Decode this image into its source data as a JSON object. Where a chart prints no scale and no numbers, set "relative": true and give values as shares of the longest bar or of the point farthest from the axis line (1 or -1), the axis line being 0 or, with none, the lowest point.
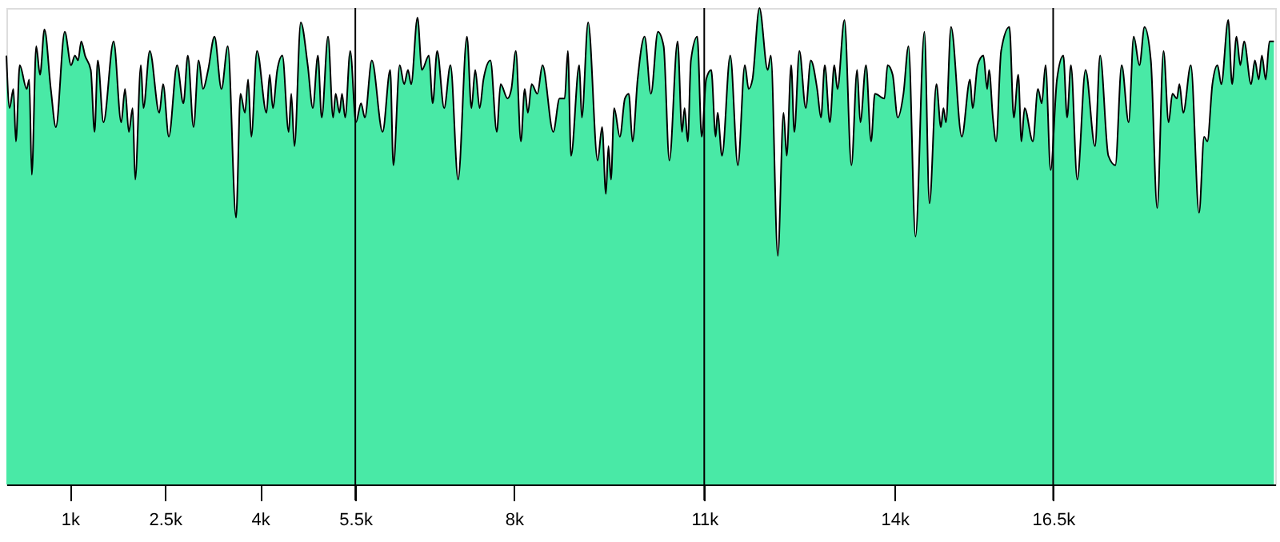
{
  "chart_data": {
    "type": "area",
    "relative": true,
    "grid": false,
    "xlim": [
      0,
      20000
    ],
    "xticks": [
      {
        "value": 1000,
        "label": "1k"
      },
      {
        "value": 2500,
        "label": "2.5k"
      },
      {
        "value": 4000,
        "label": "4k"
      },
      {
        "value": 5500,
        "label": "5.5k"
      },
      {
        "value": 8000,
        "label": "8k"
      },
      {
        "value": 11000,
        "label": "11k"
      },
      {
        "value": 14000,
        "label": "14k"
      },
      {
        "value": 16500,
        "label": "16.5k"
      }
    ],
    "ref_lines": [
      {
        "axis": "x",
        "value": 5500,
        "color": "#000000"
      },
      {
        "axis": "x",
        "value": 11000,
        "color": "#000000"
      },
      {
        "axis": "x",
        "value": 16500,
        "color": "#000000"
      }
    ],
    "x": [
      0,
      50,
      110,
      150,
      210,
      320,
      360,
      400,
      470,
      530,
      600,
      700,
      780,
      920,
      1020,
      1080,
      1130,
      1180,
      1240,
      1330,
      1390,
      1440,
      1530,
      1690,
      1810,
      1870,
      1930,
      1990,
      2030,
      2120,
      2160,
      2260,
      2410,
      2470,
      2560,
      2690,
      2790,
      2860,
      2950,
      3030,
      3100,
      3180,
      3280,
      3390,
      3490,
      3620,
      3690,
      3760,
      3810,
      3860,
      3950,
      4100,
      4150,
      4200,
      4270,
      4350,
      4450,
      4490,
      4540,
      4640,
      4750,
      4830,
      4910,
      4970,
      5070,
      5150,
      5190,
      5250,
      5290,
      5340,
      5420,
      5510,
      5590,
      5650,
      5760,
      5930,
      6050,
      6100,
      6200,
      6270,
      6330,
      6380,
      6480,
      6550,
      6660,
      6720,
      6790,
      6900,
      7000,
      7120,
      7260,
      7330,
      7390,
      7460,
      7520,
      7630,
      7730,
      7790,
      7900,
      7960,
      8030,
      8110,
      8170,
      8220,
      8280,
      8370,
      8450,
      8620,
      8720,
      8800,
      8850,
      8900,
      9030,
      9070,
      9170,
      9320,
      9390,
      9450,
      9490,
      9530,
      9580,
      9670,
      9750,
      9810,
      9870,
      9950,
      10060,
      10160,
      10270,
      10360,
      10450,
      10580,
      10650,
      10690,
      10740,
      10790,
      10890,
      10960,
      11030,
      11110,
      11180,
      11210,
      11280,
      11410,
      11530,
      11640,
      11700,
      11760,
      11870,
      12000,
      12050,
      12160,
      12250,
      12300,
      12370,
      12420,
      12500,
      12600,
      12680,
      12780,
      12840,
      12900,
      12980,
      13050,
      13100,
      13210,
      13320,
      13410,
      13460,
      13550,
      13630,
      13690,
      13840,
      13890,
      13970,
      14050,
      14140,
      14220,
      14330,
      14470,
      14550,
      14660,
      14730,
      14770,
      14810,
      14890,
      15060,
      15190,
      15230,
      15310,
      15400,
      15460,
      15490,
      15550,
      15600,
      15680,
      15810,
      15880,
      15950,
      16000,
      16050,
      16180,
      16260,
      16320,
      16380,
      16460,
      16560,
      16660,
      16720,
      16780,
      16880,
      17010,
      17160,
      17240,
      17370,
      17480,
      17580,
      17690,
      17770,
      17860,
      17940,
      18040,
      18140,
      18240,
      18320,
      18380,
      18450,
      18490,
      18550,
      18670,
      18800,
      18880,
      18930,
      19010,
      19090,
      19150,
      19260,
      19320,
      19390,
      19450,
      19510,
      19620,
      19680,
      19740,
      19790,
      19850,
      19910,
      19980
    ],
    "series": [
      {
        "color": "#49e9a6",
        "values": [
          0.9,
          0.79,
          0.83,
          0.72,
          0.88,
          0.83,
          0.85,
          0.65,
          0.92,
          0.86,
          0.955,
          0.83,
          0.75,
          0.95,
          0.88,
          0.9,
          0.89,
          0.93,
          0.9,
          0.87,
          0.74,
          0.89,
          0.76,
          0.93,
          0.76,
          0.83,
          0.74,
          0.79,
          0.64,
          0.88,
          0.79,
          0.91,
          0.78,
          0.84,
          0.73,
          0.88,
          0.8,
          0.9,
          0.75,
          0.89,
          0.83,
          0.87,
          0.94,
          0.83,
          0.92,
          0.56,
          0.82,
          0.78,
          0.85,
          0.73,
          0.91,
          0.78,
          0.86,
          0.79,
          0.87,
          0.9,
          0.74,
          0.82,
          0.71,
          0.97,
          0.88,
          0.79,
          0.9,
          0.77,
          0.94,
          0.77,
          0.82,
          0.78,
          0.82,
          0.77,
          0.91,
          0.76,
          0.8,
          0.77,
          0.89,
          0.74,
          0.87,
          0.67,
          0.88,
          0.84,
          0.87,
          0.84,
          0.98,
          0.87,
          0.9,
          0.8,
          0.91,
          0.79,
          0.88,
          0.64,
          0.94,
          0.79,
          0.87,
          0.79,
          0.85,
          0.89,
          0.74,
          0.84,
          0.81,
          0.83,
          0.91,
          0.72,
          0.83,
          0.78,
          0.84,
          0.82,
          0.88,
          0.74,
          0.81,
          0.81,
          0.91,
          0.69,
          0.88,
          0.77,
          0.97,
          0.68,
          0.75,
          0.61,
          0.71,
          0.64,
          0.79,
          0.73,
          0.81,
          0.82,
          0.72,
          0.85,
          0.94,
          0.82,
          0.95,
          0.92,
          0.68,
          0.93,
          0.74,
          0.79,
          0.72,
          0.89,
          0.94,
          0.73,
          0.85,
          0.87,
          0.73,
          0.78,
          0.69,
          0.9,
          0.67,
          0.88,
          0.83,
          0.85,
          1.0,
          0.87,
          0.9,
          0.48,
          0.78,
          0.69,
          0.88,
          0.74,
          0.91,
          0.79,
          0.89,
          0.83,
          0.77,
          0.88,
          0.76,
          0.88,
          0.83,
          0.975,
          0.67,
          0.87,
          0.76,
          0.88,
          0.72,
          0.82,
          0.81,
          0.88,
          0.86,
          0.77,
          0.82,
          0.92,
          0.52,
          0.95,
          0.59,
          0.84,
          0.75,
          0.79,
          0.76,
          0.96,
          0.73,
          0.85,
          0.79,
          0.88,
          0.9,
          0.83,
          0.87,
          0.77,
          0.72,
          0.91,
          0.96,
          0.77,
          0.86,
          0.72,
          0.79,
          0.72,
          0.83,
          0.8,
          0.88,
          0.66,
          0.85,
          0.9,
          0.77,
          0.88,
          0.64,
          0.87,
          0.71,
          0.9,
          0.69,
          0.67,
          0.88,
          0.76,
          0.94,
          0.88,
          0.96,
          0.89,
          0.58,
          0.91,
          0.76,
          0.82,
          0.81,
          0.84,
          0.78,
          0.88,
          0.57,
          0.73,
          0.72,
          0.84,
          0.88,
          0.84,
          0.975,
          0.84,
          0.94,
          0.88,
          0.93,
          0.84,
          0.89,
          0.85,
          0.9,
          0.85,
          0.93,
          0.93
        ]
      }
    ]
  }
}
